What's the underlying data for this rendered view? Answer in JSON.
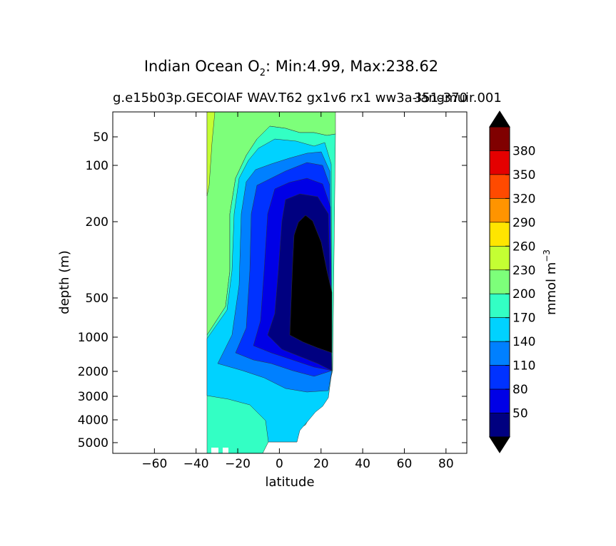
{
  "chart_data": {
    "type": "heatmap",
    "title_main": "Indian Ocean O",
    "title_sub": "2",
    "title_rest": ": Min:4.99, Max:238.62",
    "subtitle_left": "g.e15b03p.GECOIAF WAV.T62 gx1v6 rx1 ww3a-langmuir.001",
    "subtitle_right": "351-370",
    "xlabel": "latitude",
    "ylabel": "depth (m)",
    "xlim": [
      -80,
      90
    ],
    "xticks": [
      -60,
      -40,
      -20,
      0,
      20,
      40,
      60,
      80
    ],
    "xtick_labels": [
      "−60",
      "−40",
      "−20",
      "0",
      "20",
      "40",
      "60",
      "80"
    ],
    "yticks": [
      50,
      100,
      200,
      500,
      1000,
      2000,
      3000,
      4000,
      5000
    ],
    "ytick_labels": [
      "50",
      "100",
      "200",
      "500",
      "1000",
      "2000",
      "3000",
      "4000",
      "5000"
    ],
    "colorbar": {
      "label": "mmol m",
      "label_exp": "−3",
      "levels": [
        20,
        50,
        80,
        110,
        140,
        170,
        200,
        230,
        260,
        290,
        320,
        350,
        380,
        410
      ],
      "tick_labels": [
        "50",
        "80",
        "110",
        "140",
        "170",
        "200",
        "230",
        "260",
        "290",
        "320",
        "350",
        "380"
      ],
      "colors": [
        "#000080",
        "#0000e6",
        "#0032ff",
        "#0080ff",
        "#00d2ff",
        "#33ffc4",
        "#7dff7a",
        "#c4ff33",
        "#ffe500",
        "#ff9400",
        "#ff4a00",
        "#e40000",
        "#800000"
      ],
      "under_color": "#000000",
      "over_color": "#000000"
    }
  }
}
